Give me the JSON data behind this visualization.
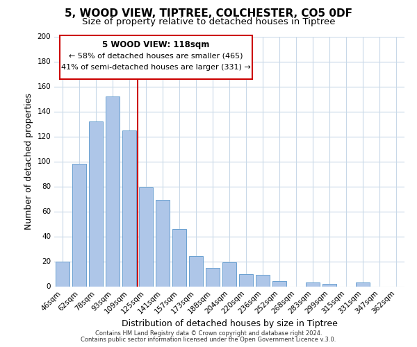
{
  "title": "5, WOOD VIEW, TIPTREE, COLCHESTER, CO5 0DF",
  "subtitle": "Size of property relative to detached houses in Tiptree",
  "xlabel": "Distribution of detached houses by size in Tiptree",
  "ylabel": "Number of detached properties",
  "bar_labels": [
    "46sqm",
    "62sqm",
    "78sqm",
    "93sqm",
    "109sqm",
    "125sqm",
    "141sqm",
    "157sqm",
    "173sqm",
    "188sqm",
    "204sqm",
    "220sqm",
    "236sqm",
    "252sqm",
    "268sqm",
    "283sqm",
    "299sqm",
    "315sqm",
    "331sqm",
    "347sqm",
    "362sqm"
  ],
  "bar_values": [
    20,
    98,
    132,
    152,
    125,
    79,
    69,
    46,
    24,
    15,
    19,
    10,
    9,
    4,
    0,
    3,
    2,
    0,
    3,
    0,
    0
  ],
  "bar_color": "#aec6e8",
  "bar_edge_color": "#6aa0d0",
  "vline_color": "#cc0000",
  "ylim": [
    0,
    200
  ],
  "yticks": [
    0,
    20,
    40,
    60,
    80,
    100,
    120,
    140,
    160,
    180,
    200
  ],
  "annotation_title": "5 WOOD VIEW: 118sqm",
  "annotation_line1": "← 58% of detached houses are smaller (465)",
  "annotation_line2": "41% of semi-detached houses are larger (331) →",
  "footer1": "Contains HM Land Registry data © Crown copyright and database right 2024.",
  "footer2": "Contains public sector information licensed under the Open Government Licence v.3.0.",
  "background_color": "#ffffff",
  "grid_color": "#c8d8e8",
  "title_fontsize": 11,
  "subtitle_fontsize": 9.5,
  "axis_label_fontsize": 9,
  "tick_fontsize": 7.5,
  "annotation_box_color": "#ffffff",
  "annotation_box_edge": "#cc0000",
  "footer_fontsize": 6.0
}
